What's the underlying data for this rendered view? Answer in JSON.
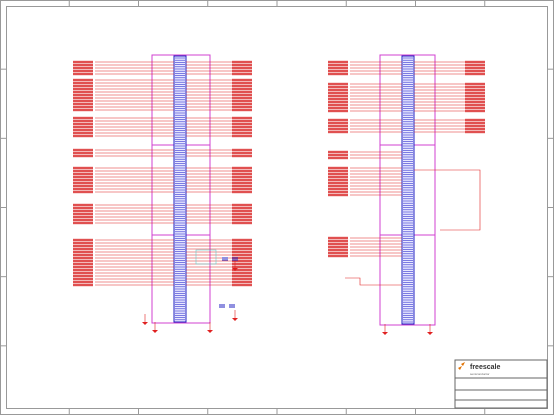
{
  "title_block": {
    "logo": "freescale",
    "logo_sub": "semiconductor"
  }
}
